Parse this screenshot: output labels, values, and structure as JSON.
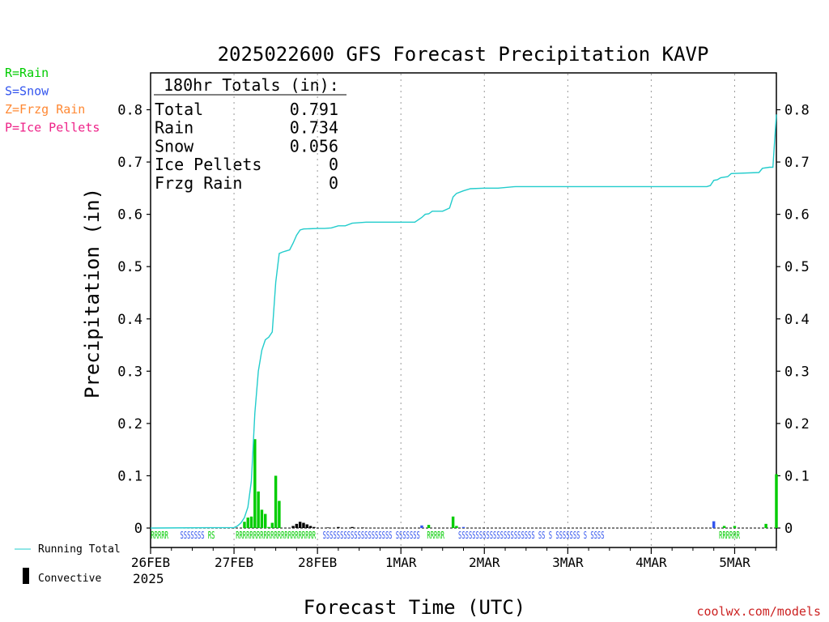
{
  "title": "2025022600 GFS Forecast Precipitation KAVP",
  "legend_types": [
    {
      "code": "R",
      "label": "R=Rain",
      "color": "#00cc00"
    },
    {
      "code": "S",
      "label": "S=Snow",
      "color": "#3355ee"
    },
    {
      "code": "Z",
      "label": "Z=Frzg Rain",
      "color": "#ff8833"
    },
    {
      "code": "P",
      "label": "P=Ice Pellets",
      "color": "#ee2288"
    }
  ],
  "totals": {
    "header": "180hr Totals (in):",
    "rows": [
      {
        "label": "Total",
        "value": "0.791"
      },
      {
        "label": "Rain",
        "value": "0.734"
      },
      {
        "label": "Snow",
        "value": "0.056"
      },
      {
        "label": "Ice Pellets",
        "value": "0"
      },
      {
        "label": "Frzg Rain",
        "value": "0"
      }
    ]
  },
  "ylabel": "Precipitation (in)",
  "xlabel": "Forecast Time (UTC)",
  "year_label": "2025",
  "bottom_legend": {
    "running_total": "Running Total",
    "convective": "Convective"
  },
  "credit": "coolwx.com/models",
  "colors": {
    "running_total": "#22cccc",
    "rain": "#00cc00",
    "snow": "#3355ee",
    "convective": "#000000",
    "credit": "#cc2222"
  },
  "chart_data": {
    "type": "bar",
    "x_unit": "forecast hour",
    "xlim": [
      0,
      180
    ],
    "ylim": [
      0,
      0.87
    ],
    "y_ticks": [
      0,
      0.1,
      0.2,
      0.3,
      0.4,
      0.5,
      0.6,
      0.7,
      0.8
    ],
    "y_tick_labels": [
      "0",
      "0.1",
      "0.2",
      "0.3",
      "0.4",
      "0.5",
      "0.6",
      "0.7",
      "0.8"
    ],
    "x_ticks": [
      {
        "hour": 0,
        "label": "26FEB"
      },
      {
        "hour": 24,
        "label": "27FEB"
      },
      {
        "hour": 48,
        "label": "28FEB"
      },
      {
        "hour": 72,
        "label": "1MAR"
      },
      {
        "hour": 96,
        "label": "2MAR"
      },
      {
        "hour": 120,
        "label": "3MAR"
      },
      {
        "hour": 144,
        "label": "4MAR"
      },
      {
        "hour": 168,
        "label": "5MAR"
      }
    ],
    "grid": "vertical dotted at day boundaries",
    "running_total": [
      [
        0,
        0
      ],
      [
        24,
        0.001
      ],
      [
        25,
        0.004
      ],
      [
        26,
        0.01
      ],
      [
        27,
        0.02
      ],
      [
        28,
        0.04
      ],
      [
        29,
        0.09
      ],
      [
        30,
        0.22
      ],
      [
        31,
        0.3
      ],
      [
        32,
        0.34
      ],
      [
        33,
        0.36
      ],
      [
        34,
        0.365
      ],
      [
        35,
        0.375
      ],
      [
        36,
        0.47
      ],
      [
        37,
        0.525
      ],
      [
        38,
        0.528
      ],
      [
        39,
        0.53
      ],
      [
        40,
        0.532
      ],
      [
        41,
        0.545
      ],
      [
        42,
        0.56
      ],
      [
        43,
        0.57
      ],
      [
        44,
        0.572
      ],
      [
        48,
        0.573
      ],
      [
        50,
        0.573
      ],
      [
        52,
        0.574
      ],
      [
        54,
        0.578
      ],
      [
        56,
        0.578
      ],
      [
        58,
        0.583
      ],
      [
        62,
        0.585
      ],
      [
        70,
        0.585
      ],
      [
        76,
        0.585
      ],
      [
        78,
        0.594
      ],
      [
        79,
        0.6
      ],
      [
        80,
        0.601
      ],
      [
        81,
        0.606
      ],
      [
        84,
        0.606
      ],
      [
        86,
        0.612
      ],
      [
        87,
        0.633
      ],
      [
        88,
        0.64
      ],
      [
        90,
        0.645
      ],
      [
        92,
        0.649
      ],
      [
        96,
        0.65
      ],
      [
        100,
        0.65
      ],
      [
        105,
        0.653
      ],
      [
        150,
        0.653
      ],
      [
        160,
        0.653
      ],
      [
        161,
        0.655
      ],
      [
        162,
        0.665
      ],
      [
        163,
        0.666
      ],
      [
        164,
        0.67
      ],
      [
        166,
        0.672
      ],
      [
        167,
        0.678
      ],
      [
        175,
        0.68
      ],
      [
        176,
        0.688
      ],
      [
        178,
        0.69
      ],
      [
        179,
        0.69
      ],
      [
        180,
        0.791
      ]
    ],
    "series": [
      {
        "name": "R",
        "type": "R",
        "values": [
          [
            27,
            0.012
          ],
          [
            28,
            0.02
          ],
          [
            29,
            0.022
          ],
          [
            30,
            0.17
          ],
          [
            31,
            0.07
          ],
          [
            32,
            0.035
          ],
          [
            33,
            0.027
          ],
          [
            34,
            0.002
          ],
          [
            35,
            0.01
          ],
          [
            36,
            0.1
          ],
          [
            37,
            0.052
          ],
          [
            80,
            0.006
          ],
          [
            87,
            0.022
          ],
          [
            88,
            0.004
          ],
          [
            165,
            0.004
          ],
          [
            168,
            0.004
          ],
          [
            177,
            0.008
          ],
          [
            180,
            0.103
          ]
        ]
      },
      {
        "name": "S",
        "type": "S",
        "values": [
          [
            78,
            0.005
          ],
          [
            90,
            0.002
          ],
          [
            162,
            0.013
          ]
        ]
      },
      {
        "name": "Convective",
        "type": "C",
        "values": [
          [
            41,
            0.004
          ],
          [
            42,
            0.008
          ],
          [
            43,
            0.012
          ],
          [
            44,
            0.01
          ],
          [
            45,
            0.007
          ],
          [
            46,
            0.004
          ],
          [
            47,
            0.002
          ],
          [
            51,
            0.001
          ],
          [
            54,
            0.002
          ],
          [
            58,
            0.002
          ],
          [
            61,
            0.001
          ]
        ]
      }
    ],
    "ptype_markers": [
      {
        "text": "RRRRR",
        "type": "R",
        "hour": 0.1
      },
      {
        "text": "SSSSSSS",
        "type": "S",
        "hour": 8.5
      },
      {
        "text": "RS",
        "type": "R",
        "hour": 16.5
      },
      {
        "text": "RRRRRRRRRRRRRRRRRRRRRRR",
        "type": "R",
        "hour": 24.5
      },
      {
        "text": "SSSSSSSSSSSSSSSSSSS",
        "type": "S",
        "hour": 49.5
      },
      {
        "text": "S SSSSSSS",
        "type": "S",
        "hour": 68.5
      },
      {
        "text": "RRRRR",
        "type": "R",
        "hour": 79.5
      },
      {
        "text": "SSSSSSSSSSSSSSSSSSSSSS",
        "type": "S",
        "hour": 88.5
      },
      {
        "text": "SS S SSSSSSS S SSSS",
        "type": "S",
        "hour": 111.5
      },
      {
        "text": "RRRRRR",
        "type": "R",
        "hour": 163.5
      }
    ]
  }
}
